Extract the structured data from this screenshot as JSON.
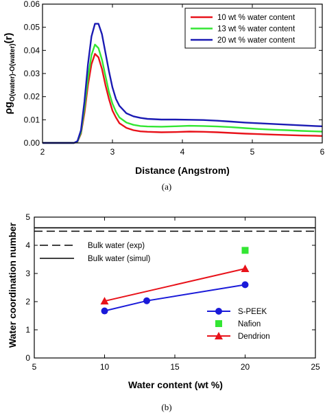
{
  "chart_data": [
    {
      "type": "line",
      "panel_label": "(a)",
      "xlabel": "Distance (Angstrom)",
      "ylabel_main": "ρg",
      "ylabel_sub": "O(water)-O(water)",
      "ylabel_tail": "(r)",
      "xlim": [
        2,
        6
      ],
      "ylim": [
        0,
        0.06
      ],
      "xticks": [
        "2",
        "3",
        "4",
        "5",
        "6"
      ],
      "yticks": [
        "0.00",
        "0.01",
        "0.02",
        "0.03",
        "0.04",
        "0.05",
        "0.06"
      ],
      "legend_position": "top-right",
      "series": [
        {
          "name": "10 wt % water content",
          "color": "#e8121a",
          "points": [
            [
              2.0,
              0
            ],
            [
              2.45,
              0
            ],
            [
              2.5,
              0.0005
            ],
            [
              2.55,
              0.004
            ],
            [
              2.6,
              0.013
            ],
            [
              2.65,
              0.025
            ],
            [
              2.7,
              0.034
            ],
            [
              2.75,
              0.0385
            ],
            [
              2.8,
              0.037
            ],
            [
              2.85,
              0.032
            ],
            [
              2.9,
              0.025
            ],
            [
              2.95,
              0.019
            ],
            [
              3.0,
              0.014
            ],
            [
              3.05,
              0.011
            ],
            [
              3.1,
              0.0085
            ],
            [
              3.2,
              0.0065
            ],
            [
              3.3,
              0.0055
            ],
            [
              3.4,
              0.005
            ],
            [
              3.5,
              0.0048
            ],
            [
              3.7,
              0.0046
            ],
            [
              3.9,
              0.0047
            ],
            [
              4.1,
              0.0049
            ],
            [
              4.3,
              0.0048
            ],
            [
              4.5,
              0.0046
            ],
            [
              4.7,
              0.0043
            ],
            [
              4.9,
              0.004
            ],
            [
              5.1,
              0.0038
            ],
            [
              5.3,
              0.0036
            ],
            [
              5.5,
              0.0034
            ],
            [
              5.7,
              0.0032
            ],
            [
              5.9,
              0.0031
            ],
            [
              6.0,
              0.003
            ]
          ]
        },
        {
          "name": "13 wt % water content",
          "color": "#33e633",
          "points": [
            [
              2.0,
              0
            ],
            [
              2.45,
              0
            ],
            [
              2.5,
              0.0006
            ],
            [
              2.55,
              0.0045
            ],
            [
              2.6,
              0.015
            ],
            [
              2.65,
              0.028
            ],
            [
              2.7,
              0.038
            ],
            [
              2.75,
              0.0425
            ],
            [
              2.8,
              0.041
            ],
            [
              2.85,
              0.036
            ],
            [
              2.9,
              0.029
            ],
            [
              2.95,
              0.022
            ],
            [
              3.0,
              0.017
            ],
            [
              3.05,
              0.0135
            ],
            [
              3.1,
              0.011
            ],
            [
              3.2,
              0.0088
            ],
            [
              3.3,
              0.0078
            ],
            [
              3.4,
              0.0073
            ],
            [
              3.5,
              0.0071
            ],
            [
              3.7,
              0.007
            ],
            [
              3.9,
              0.0072
            ],
            [
              4.1,
              0.0074
            ],
            [
              4.3,
              0.0073
            ],
            [
              4.5,
              0.0071
            ],
            [
              4.7,
              0.0068
            ],
            [
              4.9,
              0.0064
            ],
            [
              5.1,
              0.006
            ],
            [
              5.3,
              0.0057
            ],
            [
              5.5,
              0.0055
            ],
            [
              5.7,
              0.0052
            ],
            [
              5.9,
              0.005
            ],
            [
              6.0,
              0.0049
            ]
          ]
        },
        {
          "name": "20 wt % water content",
          "color": "#1a1ab3",
          "points": [
            [
              2.0,
              0
            ],
            [
              2.45,
              0
            ],
            [
              2.5,
              0.0008
            ],
            [
              2.55,
              0.0055
            ],
            [
              2.6,
              0.018
            ],
            [
              2.65,
              0.034
            ],
            [
              2.7,
              0.046
            ],
            [
              2.75,
              0.0515
            ],
            [
              2.8,
              0.0515
            ],
            [
              2.85,
              0.047
            ],
            [
              2.9,
              0.039
            ],
            [
              2.95,
              0.031
            ],
            [
              3.0,
              0.024
            ],
            [
              3.05,
              0.019
            ],
            [
              3.1,
              0.016
            ],
            [
              3.2,
              0.0128
            ],
            [
              3.3,
              0.0115
            ],
            [
              3.4,
              0.0108
            ],
            [
              3.5,
              0.0104
            ],
            [
              3.7,
              0.0101
            ],
            [
              3.9,
              0.0101
            ],
            [
              4.1,
              0.01
            ],
            [
              4.3,
              0.0099
            ],
            [
              4.5,
              0.0096
            ],
            [
              4.7,
              0.0092
            ],
            [
              4.9,
              0.0088
            ],
            [
              5.1,
              0.0085
            ],
            [
              5.3,
              0.0082
            ],
            [
              5.5,
              0.0079
            ],
            [
              5.7,
              0.0076
            ],
            [
              5.9,
              0.0073
            ],
            [
              6.0,
              0.0072
            ]
          ]
        }
      ]
    },
    {
      "type": "scatter",
      "panel_label": "(b)",
      "xlabel": "Water content (wt %)",
      "ylabel": "Water coordination number",
      "xlim": [
        5,
        25
      ],
      "ylim": [
        0,
        5
      ],
      "xticks": [
        "5",
        "10",
        "15",
        "20",
        "25"
      ],
      "yticks": [
        "0",
        "1",
        "2",
        "3",
        "4",
        "5"
      ],
      "reference_lines": [
        {
          "name": "Bulk water (exp)",
          "y": 4.5,
          "style": "dashed"
        },
        {
          "name": "Bulk water (simul)",
          "y": 4.62,
          "style": "solid"
        }
      ],
      "series": [
        {
          "name": "S-PEEK",
          "color": "#1a1ad9",
          "marker": "circle",
          "line": true,
          "x": [
            10,
            13,
            20
          ],
          "y": [
            1.67,
            2.03,
            2.6
          ]
        },
        {
          "name": "Nafion",
          "color": "#33e633",
          "marker": "square",
          "line": false,
          "x": [
            20
          ],
          "y": [
            3.82
          ]
        },
        {
          "name": "Dendrion",
          "color": "#e8121a",
          "marker": "triangle",
          "line": true,
          "x": [
            10,
            20
          ],
          "y": [
            2.02,
            3.17
          ]
        }
      ]
    }
  ]
}
